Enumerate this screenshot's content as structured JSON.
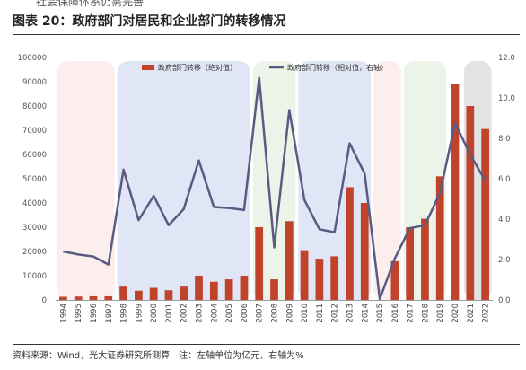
{
  "header": {
    "top_fragment": "社会保障体系仍需完善",
    "title": "图表 20：政府部门对居民和企业部门的转移情况"
  },
  "footer": {
    "source": "资料来源：Wind，光大证券研究所测算　注：左轴单位为亿元，右轴为%"
  },
  "colors": {
    "bar": "#c0432b",
    "line": "#5a5b82",
    "band_pink": "#fdeeee",
    "band_blue": "#e0e6f5",
    "band_green": "#ecf4ea",
    "band_gray": "#e3e3e3"
  },
  "chart_data": {
    "type": "bar",
    "categories": [
      "1994",
      "1995",
      "1996",
      "1997",
      "1998",
      "1999",
      "2000",
      "2001",
      "2002",
      "2003",
      "2004",
      "2005",
      "2006",
      "2007",
      "2008",
      "2009",
      "2010",
      "2011",
      "2012",
      "2013",
      "2014",
      "2015",
      "2016",
      "2017",
      "2018",
      "2019",
      "2020",
      "2021",
      "2022"
    ],
    "series": [
      {
        "name": "政府部门转移（绝对值）",
        "kind": "bar",
        "axis": "left",
        "values": [
          1300,
          1400,
          1500,
          1500,
          5500,
          3800,
          5000,
          4000,
          5500,
          10000,
          7500,
          8500,
          10000,
          30000,
          8500,
          32500,
          20500,
          17000,
          18000,
          46500,
          40000,
          0,
          16000,
          30000,
          33500,
          51000,
          89000,
          80000,
          70500
        ]
      },
      {
        "name": "政府部门转移（相对值，右轴）",
        "kind": "line",
        "axis": "right",
        "values": [
          2.4,
          2.25,
          2.15,
          1.75,
          6.45,
          3.95,
          5.15,
          3.7,
          4.5,
          6.9,
          4.6,
          4.55,
          4.45,
          11.0,
          2.6,
          9.4,
          4.95,
          3.5,
          3.35,
          7.75,
          6.25,
          0.05,
          2.05,
          3.55,
          3.7,
          5.3,
          8.75,
          7.2,
          5.9
        ]
      }
    ],
    "ylim_left": [
      0,
      100000
    ],
    "yticks_left": [
      0,
      10000,
      20000,
      30000,
      40000,
      50000,
      60000,
      70000,
      80000,
      90000,
      100000
    ],
    "ylim_right": [
      0,
      12
    ],
    "yticks_right": [
      "0.0",
      "2.0",
      "4.0",
      "6.0",
      "8.0",
      "10.0",
      "12.0"
    ],
    "legend_position": "top",
    "grid": false,
    "shaded_periods": [
      {
        "from": "1994",
        "to": "1997",
        "color": "band_pink"
      },
      {
        "from": "1998",
        "to": "2006",
        "color": "band_blue"
      },
      {
        "from": "2007",
        "to": "2009",
        "color": "band_green"
      },
      {
        "from": "2010",
        "to": "2014",
        "color": "band_blue"
      },
      {
        "from": "2015",
        "to": "2016",
        "color": "band_pink"
      },
      {
        "from": "2017",
        "to": "2019",
        "color": "band_green"
      },
      {
        "from": "2021",
        "to": "2022",
        "color": "band_gray"
      }
    ]
  }
}
